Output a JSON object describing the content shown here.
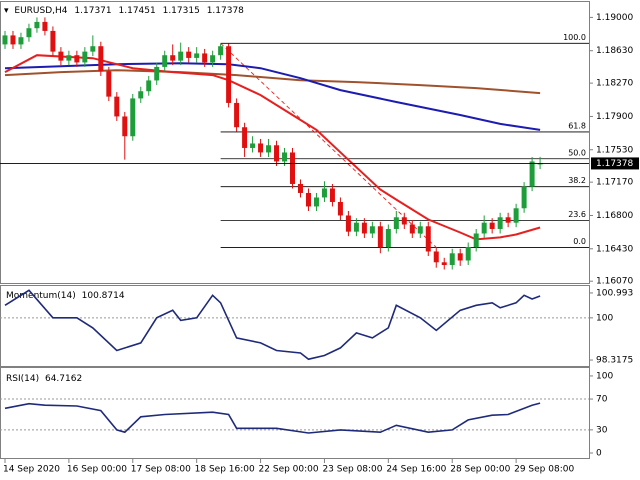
{
  "chart_data": [
    {
      "type": "candlestick",
      "title": "EURUSD,H4",
      "xlim": [
        -0.625,
        73.125
      ],
      "ylim": [
        1.1605,
        1.1916
      ],
      "yticks": [
        {
          "value": 1.19,
          "label": "1.19000"
        },
        {
          "value": 1.1863,
          "label": "1.18630"
        },
        {
          "value": 1.1827,
          "label": "1.18270"
        },
        {
          "value": 1.179,
          "label": "1.17900"
        },
        {
          "value": 1.1753,
          "label": "1.17530"
        },
        {
          "value": 1.1717,
          "label": "1.17170"
        },
        {
          "value": 1.168,
          "label": "1.16800"
        },
        {
          "value": 1.1643,
          "label": "1.16430"
        },
        {
          "value": 1.1607,
          "label": "1.16070"
        }
      ],
      "xticks": [
        {
          "value": 0,
          "label": "14 Sep 2020"
        },
        {
          "value": 8,
          "label": "16 Sep 00:00"
        },
        {
          "value": 16,
          "label": "17 Sep 08:00"
        },
        {
          "value": 24,
          "label": "18 Sep 16:00"
        },
        {
          "value": 32,
          "label": "22 Sep 00:00"
        },
        {
          "value": 40,
          "label": "23 Sep 08:00"
        },
        {
          "value": 48,
          "label": "24 Sep 16:00"
        },
        {
          "value": 56,
          "label": "28 Sep 00:00"
        },
        {
          "value": 64,
          "label": "29 Sep 08:00"
        }
      ],
      "up_color": "#1e9e3a",
      "down_color": "#e01010",
      "open": [
        1.187,
        1.188,
        1.187,
        1.1878,
        1.1888,
        1.1895,
        1.1885,
        1.1862,
        1.1852,
        1.1858,
        1.185,
        1.1862,
        1.1868,
        1.184,
        1.1812,
        1.179,
        1.1768,
        1.181,
        1.1818,
        1.183,
        1.1845,
        1.1858,
        1.1852,
        1.1862,
        1.1855,
        1.186,
        1.185,
        1.1858,
        1.1868,
        1.1805,
        1.1778,
        1.1755,
        1.176,
        1.175,
        1.1758,
        1.174,
        1.175,
        1.1715,
        1.1705,
        1.169,
        1.17,
        1.171,
        1.1695,
        1.168,
        1.1662,
        1.1672,
        1.166,
        1.1668,
        1.1645,
        1.1665,
        1.1678,
        1.167,
        1.166,
        1.1668,
        1.164,
        1.1628,
        1.1625,
        1.1638,
        1.163,
        1.1645,
        1.166,
        1.1672,
        1.1665,
        1.1678,
        1.1672,
        1.1688,
        1.1712,
        1.17371
      ],
      "high": [
        1.1885,
        1.1885,
        1.1883,
        1.1893,
        1.19,
        1.19,
        1.189,
        1.1867,
        1.1863,
        1.1863,
        1.1867,
        1.188,
        1.1873,
        1.1845,
        1.1817,
        1.1795,
        1.1815,
        1.1823,
        1.1835,
        1.185,
        1.1863,
        1.187,
        1.1872,
        1.1867,
        1.1867,
        1.1865,
        1.1863,
        1.1871,
        1.1871,
        1.181,
        1.1783,
        1.1768,
        1.1765,
        1.1765,
        1.1763,
        1.1755,
        1.1755,
        1.172,
        1.171,
        1.1705,
        1.1718,
        1.1715,
        1.17,
        1.1685,
        1.1677,
        1.1677,
        1.1673,
        1.1673,
        1.167,
        1.1685,
        1.1683,
        1.1675,
        1.1673,
        1.1673,
        1.1645,
        1.1633,
        1.1643,
        1.1643,
        1.165,
        1.1665,
        1.168,
        1.1677,
        1.1683,
        1.1683,
        1.1693,
        1.1717,
        1.1745,
        1.17451
      ],
      "low": [
        1.1865,
        1.1865,
        1.1865,
        1.1873,
        1.1883,
        1.188,
        1.1857,
        1.1847,
        1.1847,
        1.1845,
        1.1845,
        1.1857,
        1.1835,
        1.1807,
        1.1785,
        1.1742,
        1.1763,
        1.1805,
        1.1813,
        1.1825,
        1.184,
        1.1847,
        1.1847,
        1.185,
        1.185,
        1.1845,
        1.1845,
        1.1853,
        1.18,
        1.1773,
        1.1745,
        1.175,
        1.1745,
        1.1745,
        1.1735,
        1.1735,
        1.171,
        1.17,
        1.1685,
        1.1685,
        1.1695,
        1.169,
        1.1675,
        1.1657,
        1.1657,
        1.1655,
        1.1655,
        1.1638,
        1.164,
        1.166,
        1.1665,
        1.1655,
        1.1655,
        1.1635,
        1.1622,
        1.162,
        1.162,
        1.1624,
        1.1625,
        1.164,
        1.1655,
        1.166,
        1.166,
        1.1667,
        1.1667,
        1.1683,
        1.1707,
        1.17315
      ],
      "close": [
        1.188,
        1.187,
        1.1878,
        1.1888,
        1.1895,
        1.1885,
        1.1862,
        1.1852,
        1.1858,
        1.185,
        1.1862,
        1.1868,
        1.184,
        1.1812,
        1.179,
        1.1768,
        1.181,
        1.1818,
        1.183,
        1.1845,
        1.1858,
        1.1852,
        1.1862,
        1.1855,
        1.186,
        1.185,
        1.1858,
        1.1868,
        1.1805,
        1.1778,
        1.1755,
        1.176,
        1.175,
        1.1758,
        1.174,
        1.175,
        1.1715,
        1.1705,
        1.169,
        1.17,
        1.171,
        1.1695,
        1.168,
        1.1662,
        1.1672,
        1.166,
        1.1668,
        1.1645,
        1.1665,
        1.1678,
        1.167,
        1.166,
        1.1668,
        1.164,
        1.1628,
        1.1625,
        1.1638,
        1.163,
        1.1645,
        1.166,
        1.1672,
        1.1665,
        1.1678,
        1.1672,
        1.1688,
        1.1712,
        1.174,
        1.17378
      ],
      "series": [
        {
          "color": "#a0522d",
          "x": [
            0,
            7,
            14,
            22,
            29,
            37,
            44,
            52,
            59,
            67
          ],
          "values": [
            1.18359,
            1.18392,
            1.18414,
            1.18392,
            1.18359,
            1.18303,
            1.18281,
            1.18248,
            1.18215,
            1.18159
          ]
        },
        {
          "color": "#1c1cb0",
          "x": [
            0,
            7,
            14,
            22,
            28,
            32,
            37,
            42,
            49,
            57,
            62,
            67
          ],
          "values": [
            1.18436,
            1.18458,
            1.1848,
            1.18491,
            1.1848,
            1.18436,
            1.18325,
            1.18193,
            1.1806,
            1.17916,
            1.17817,
            1.1775
          ]
        },
        {
          "color": "#e62020",
          "x": [
            0,
            4,
            11,
            16,
            21,
            26,
            28,
            32,
            36,
            39,
            43,
            47,
            49,
            53,
            57,
            59,
            62,
            64,
            67
          ],
          "values": [
            1.18392,
            1.1858,
            1.18547,
            1.18436,
            1.18392,
            1.18359,
            1.18303,
            1.18137,
            1.17916,
            1.1775,
            1.17418,
            1.17087,
            1.16976,
            1.16755,
            1.16611,
            1.16534,
            1.16556,
            1.16589,
            1.16666
          ]
        }
      ],
      "fib_x": [
        27,
        54
      ],
      "fib_levels": [
        {
          "value": 1.18712,
          "label": "100.0"
        },
        {
          "value": 1.17728,
          "label": "61.8"
        },
        {
          "value": 1.1743,
          "label": "50.0"
        },
        {
          "value": 1.1712,
          "label": "38.2"
        },
        {
          "value": 1.16744,
          "label": "23.6"
        },
        {
          "value": 1.16445,
          "label": "0.0"
        }
      ]
    },
    {
      "type": "line",
      "title": "Momentum(14)",
      "xlim": [
        -0.625,
        73.125
      ],
      "ylim": [
        98.08,
        101.23
      ],
      "yticks": [
        100.993,
        100,
        98.3175
      ],
      "levels": [
        100
      ],
      "series": [
        {
          "color": "#1f2a7a",
          "x": [
            0,
            3,
            6,
            9,
            11,
            14,
            17,
            19,
            21,
            22,
            24,
            26,
            27,
            29,
            32,
            34,
            37,
            38,
            40,
            42,
            44,
            46,
            48,
            49,
            52,
            54,
            57,
            59,
            61,
            62,
            64,
            65,
            66,
            67
          ],
          "values": [
            100.5,
            101.1,
            100.0,
            100.0,
            99.6,
            98.7,
            99.0,
            100.0,
            100.3,
            99.9,
            100.0,
            100.9,
            100.6,
            99.2,
            99.0,
            98.7,
            98.6,
            98.35,
            98.5,
            98.8,
            99.4,
            99.2,
            99.6,
            100.5,
            100.0,
            99.5,
            100.3,
            100.5,
            100.6,
            100.4,
            100.6,
            100.9,
            100.75,
            100.8714
          ]
        }
      ]
    },
    {
      "type": "line",
      "title": "RSI(14)",
      "xlim": [
        -0.625,
        73.125
      ],
      "ylim": [
        -6.5,
        109
      ],
      "yticks": [
        100,
        70,
        30,
        0
      ],
      "levels": [
        70,
        30
      ],
      "series": [
        {
          "color": "#1f2a7a",
          "x": [
            0,
            3,
            5,
            9,
            12,
            14,
            15,
            17,
            20,
            26,
            28,
            29,
            34,
            38,
            42,
            47,
            49,
            53,
            56,
            58,
            61,
            63,
            66,
            67
          ],
          "values": [
            58,
            64,
            62,
            61,
            55,
            30,
            27,
            47,
            50,
            53,
            50,
            32,
            32,
            26,
            30,
            27,
            36,
            27,
            30,
            43,
            49,
            50,
            62,
            64.7162
          ]
        }
      ]
    }
  ]
}
